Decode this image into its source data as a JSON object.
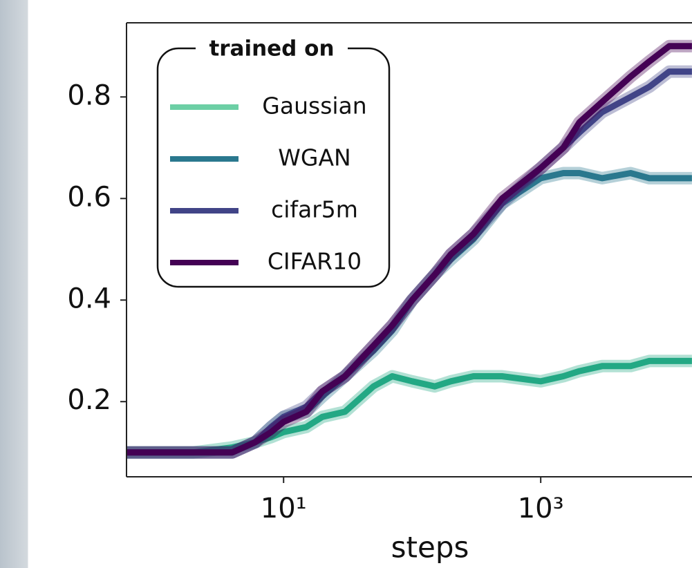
{
  "chart_data": {
    "type": "line",
    "xlabel": "steps",
    "legend_title": "trained on",
    "legend_position": "upper left",
    "x": [
      0.6,
      1,
      2,
      4,
      6,
      8,
      10,
      15,
      20,
      30,
      50,
      70,
      100,
      150,
      200,
      300,
      500,
      1000,
      1500,
      2000,
      3000,
      5000,
      7000,
      10000,
      15000
    ],
    "series": [
      {
        "name": "Gaussian",
        "color": "#23a884",
        "legend_color": "#6ccfa5",
        "values": [
          0.1,
          0.1,
          0.1,
          0.11,
          0.12,
          0.13,
          0.14,
          0.15,
          0.17,
          0.18,
          0.23,
          0.25,
          0.24,
          0.23,
          0.24,
          0.25,
          0.25,
          0.24,
          0.25,
          0.26,
          0.27,
          0.27,
          0.28,
          0.28,
          0.28
        ]
      },
      {
        "name": "WGAN",
        "color": "#2a788e",
        "legend_color": "#2a788e",
        "values": [
          0.1,
          0.1,
          0.1,
          0.1,
          0.12,
          0.15,
          0.17,
          0.18,
          0.21,
          0.25,
          0.3,
          0.34,
          0.4,
          0.45,
          0.48,
          0.52,
          0.59,
          0.64,
          0.65,
          0.65,
          0.64,
          0.65,
          0.64,
          0.64,
          0.64
        ]
      },
      {
        "name": "cifar5m",
        "color": "#414487",
        "legend_color": "#414487",
        "values": [
          0.1,
          0.1,
          0.1,
          0.1,
          0.12,
          0.15,
          0.17,
          0.19,
          0.22,
          0.25,
          0.31,
          0.35,
          0.4,
          0.45,
          0.49,
          0.53,
          0.59,
          0.66,
          0.7,
          0.73,
          0.77,
          0.8,
          0.82,
          0.85,
          0.85
        ]
      },
      {
        "name": "CIFAR10",
        "color": "#440154",
        "legend_color": "#440154",
        "values": [
          0.1,
          0.1,
          0.1,
          0.1,
          0.12,
          0.14,
          0.16,
          0.18,
          0.22,
          0.25,
          0.31,
          0.35,
          0.4,
          0.45,
          0.49,
          0.53,
          0.6,
          0.66,
          0.7,
          0.75,
          0.79,
          0.84,
          0.87,
          0.9,
          0.9
        ]
      }
    ],
    "xscale": "log",
    "xlim": [
      0.6,
      17000
    ],
    "xticks": [
      {
        "value": 10,
        "label": "10¹"
      },
      {
        "value": 1000,
        "label": "10³"
      }
    ],
    "ylim": [
      0.052,
      0.946
    ],
    "yticks": [
      0.2,
      0.4,
      0.6,
      0.8
    ],
    "grid": false
  }
}
